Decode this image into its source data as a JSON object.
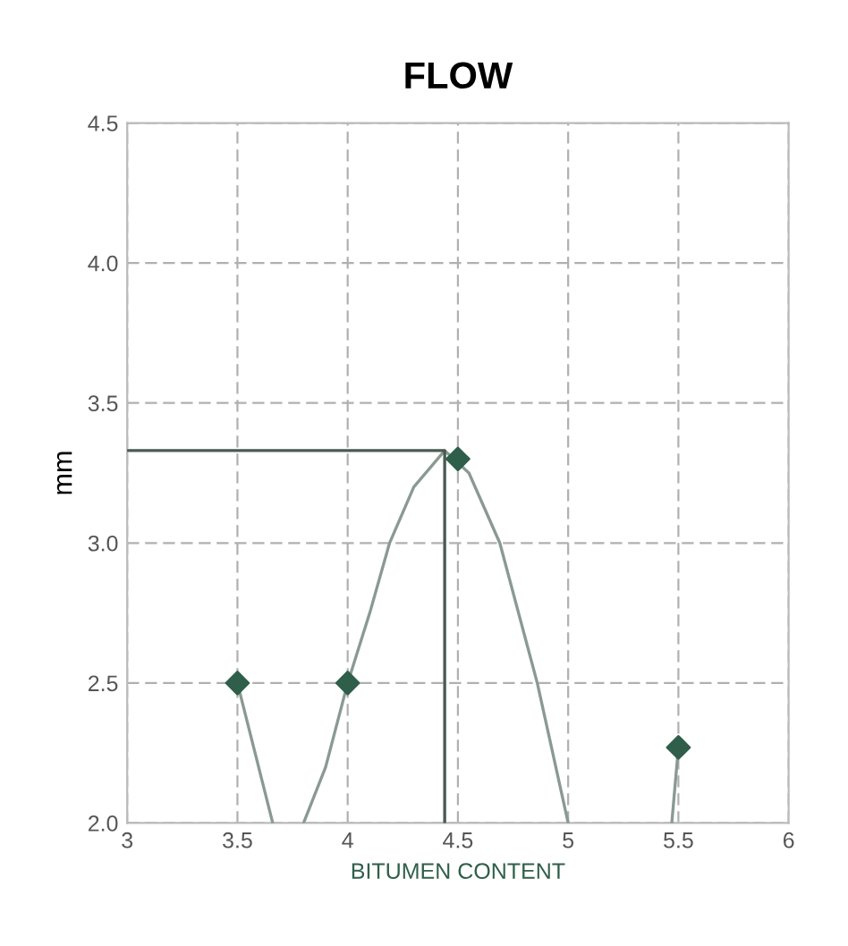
{
  "chart_data": {
    "type": "line",
    "title": "FLOW",
    "xlabel": "BITUMEN CONTENT",
    "ylabel": "mm",
    "xlim": [
      3,
      6
    ],
    "xticks": [
      3,
      3.5,
      4,
      4.5,
      5,
      5.5,
      6
    ],
    "ylim": [
      2.0,
      4.5
    ],
    "yticks": [
      {
        "value": 2.0,
        "label": "2.0"
      },
      {
        "value": 2.5,
        "label": "2.5"
      },
      {
        "value": 3.0,
        "label": "3.0"
      },
      {
        "value": 3.5,
        "label": "3.5"
      },
      {
        "value": 4.0,
        "label": "4.0"
      },
      {
        "value": 4.5,
        "label": "4.5"
      }
    ],
    "grid": true,
    "legend": false,
    "series": [
      {
        "color": "#8a9a92",
        "marker": "none",
        "line_style": "solid",
        "x": [
          3.5,
          3.58,
          3.66,
          3.73,
          3.8,
          3.9,
          4.0,
          4.1,
          4.19,
          4.3,
          4.44,
          4.55,
          4.69,
          4.86,
          5.0,
          5.2,
          5.47,
          5.5
        ],
        "values": [
          2.5,
          2.25,
          2.0,
          null,
          2.0,
          2.2,
          2.5,
          2.75,
          3.0,
          3.2,
          3.33,
          3.25,
          3.0,
          2.5,
          2.0,
          null,
          2.0,
          2.27
        ]
      },
      {
        "type": "line",
        "color": "#4a5a52",
        "marker": "none",
        "line_style": "solid",
        "x": [
          3,
          4.44,
          4.44
        ],
        "values": [
          3.33,
          3.33,
          2.0
        ]
      },
      {
        "type": "scatter",
        "color": "#2f5f4a",
        "marker": "diamond",
        "x": [
          3.5,
          4.0,
          4.5,
          5.5
        ],
        "values": [
          2.5,
          2.5,
          3.3,
          2.27
        ]
      }
    ]
  }
}
